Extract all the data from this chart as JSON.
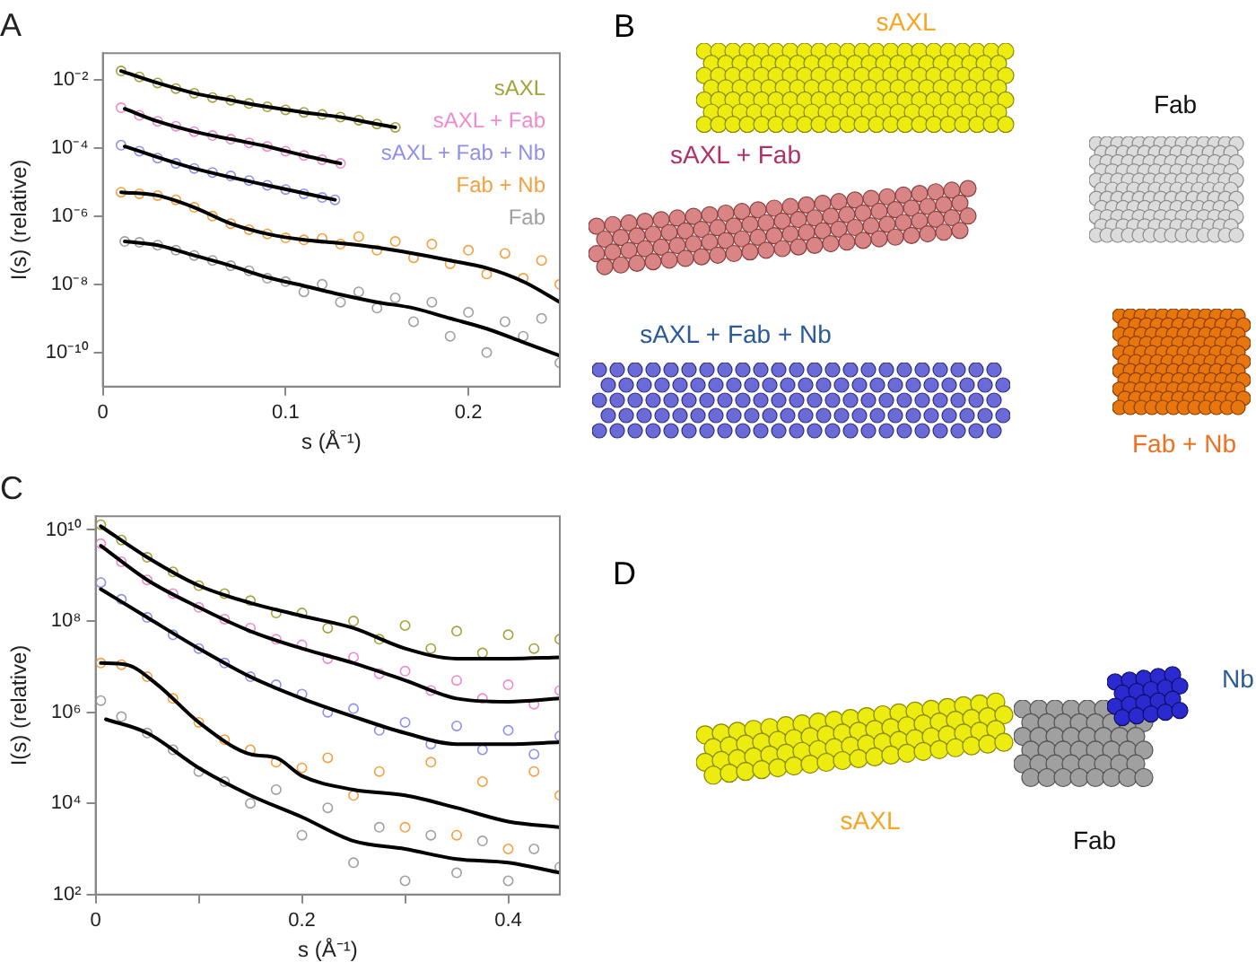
{
  "chart_data": [
    {
      "type": "scatter",
      "title": "A",
      "xlabel": "s (Å⁻¹)",
      "ylabel": "I(s) (relative)",
      "log": "y",
      "grid": false,
      "legend": "top right",
      "xlim": [
        0,
        0.25
      ],
      "ylim": [
        1e-11,
        0.06
      ],
      "xticks": [
        0,
        0.1,
        0.2
      ],
      "yticks": [
        {
          "value": 0.01,
          "label": "10⁻²"
        },
        {
          "value": 0.0001,
          "label": "10⁻⁴"
        },
        {
          "value": 1e-06,
          "label": "10⁻⁶"
        },
        {
          "value": 1e-08,
          "label": "10⁻⁸"
        },
        {
          "value": 1e-10,
          "label": "10⁻¹⁰"
        }
      ],
      "series": [
        {
          "name": "sAXL",
          "type": "scatter",
          "marker": "circle",
          "color": "#a3a33b",
          "x": [
            0.01,
            0.02,
            0.03,
            0.04,
            0.05,
            0.06,
            0.07,
            0.08,
            0.09,
            0.1,
            0.11,
            0.12,
            0.13,
            0.14,
            0.15,
            0.16
          ],
          "values": [
            0.018,
            0.012,
            0.008,
            0.0055,
            0.004,
            0.003,
            0.0025,
            0.002,
            0.0016,
            0.0013,
            0.0011,
            0.00095,
            0.0008,
            0.00065,
            0.0005,
            0.0004
          ]
        },
        {
          "name": "sAXL + Fab",
          "type": "scatter",
          "marker": "circle",
          "color": "#f08ad0",
          "x": [
            0.01,
            0.02,
            0.03,
            0.04,
            0.05,
            0.06,
            0.07,
            0.08,
            0.09,
            0.1,
            0.11,
            0.12,
            0.13
          ],
          "values": [
            0.0015,
            0.0009,
            0.0006,
            0.00043,
            0.0003,
            0.00023,
            0.00018,
            0.00014,
            0.00011,
            8e-05,
            6e-05,
            4.5e-05,
            3.5e-05
          ]
        },
        {
          "name": "sAXL + Fab + Nb",
          "type": "scatter",
          "marker": "circle",
          "color": "#8f8ff0",
          "x": [
            0.01,
            0.02,
            0.03,
            0.04,
            0.05,
            0.06,
            0.07,
            0.08,
            0.09,
            0.1,
            0.11,
            0.12,
            0.127
          ],
          "values": [
            0.00012,
            8e-05,
            5e-05,
            3.5e-05,
            2.5e-05,
            1.9e-05,
            1.5e-05,
            1.1e-05,
            8e-06,
            6e-06,
            4.5e-06,
            3.5e-06,
            3e-06
          ]
        },
        {
          "name": "Fab + Nb",
          "type": "scatter",
          "marker": "circle",
          "color": "#f5a040",
          "x": [
            0.01,
            0.02,
            0.03,
            0.04,
            0.05,
            0.06,
            0.07,
            0.08,
            0.09,
            0.1,
            0.11,
            0.12,
            0.13,
            0.14,
            0.15,
            0.16,
            0.17,
            0.18,
            0.19,
            0.2,
            0.21,
            0.22,
            0.23,
            0.24,
            0.25
          ],
          "values": [
            5e-06,
            4.5e-06,
            4e-06,
            3e-06,
            1.8e-06,
            1e-06,
            6e-07,
            4e-07,
            3e-07,
            2.3e-07,
            2e-07,
            2.2e-07,
            1.5e-07,
            2.5e-07,
            1e-07,
            1.8e-07,
            6e-08,
            1.5e-07,
            4e-08,
            1e-07,
            2e-08,
            8e-08,
            1.5e-08,
            5e-08,
            1e-08
          ]
        },
        {
          "name": "Fab",
          "type": "scatter",
          "marker": "circle",
          "color": "#a0a0a0",
          "x": [
            0.012,
            0.02,
            0.03,
            0.04,
            0.05,
            0.06,
            0.07,
            0.08,
            0.09,
            0.1,
            0.11,
            0.12,
            0.13,
            0.14,
            0.15,
            0.16,
            0.17,
            0.18,
            0.19,
            0.2,
            0.21,
            0.22,
            0.23,
            0.24,
            0.25
          ],
          "values": [
            1.8e-07,
            1.7e-07,
            1.4e-07,
            1e-07,
            7e-08,
            5e-08,
            3.5e-08,
            2.5e-08,
            1.5e-08,
            1.2e-08,
            6e-09,
            1e-08,
            3e-09,
            6e-09,
            2e-09,
            4e-09,
            8e-10,
            3e-09,
            3e-10,
            1.5e-09,
            1e-10,
            8e-10,
            3e-10,
            1e-09,
            5e-11
          ]
        },
        {
          "type": "line",
          "marker": "none",
          "color": "#000000",
          "x": [
            0.01,
            0.03,
            0.05,
            0.07,
            0.09,
            0.11,
            0.13,
            0.15,
            0.16
          ],
          "values": [
            0.018,
            0.008,
            0.004,
            0.0025,
            0.0016,
            0.0011,
            0.0008,
            0.0005,
            0.0004
          ]
        },
        {
          "type": "line",
          "marker": "none",
          "color": "#000000",
          "x": [
            0.012,
            0.03,
            0.05,
            0.07,
            0.09,
            0.11,
            0.13
          ],
          "values": [
            0.0014,
            0.0006,
            0.0003,
            0.00018,
            0.00011,
            6e-05,
            3.5e-05
          ]
        },
        {
          "type": "line",
          "marker": "none",
          "color": "#000000",
          "x": [
            0.012,
            0.05,
            0.09,
            0.127
          ],
          "values": [
            0.00011,
            2.5e-05,
            8e-06,
            3e-06
          ]
        },
        {
          "type": "line",
          "marker": "none",
          "color": "#000000",
          "x": [
            0.01,
            0.03,
            0.05,
            0.07,
            0.09,
            0.11,
            0.13,
            0.15,
            0.17,
            0.19,
            0.21,
            0.23,
            0.25
          ],
          "values": [
            5e-06,
            4e-06,
            1.8e-06,
            6e-07,
            3e-07,
            2e-07,
            1.6e-07,
            1.2e-07,
            8e-08,
            5e-08,
            3e-08,
            1.2e-08,
            3e-09
          ]
        },
        {
          "type": "line",
          "marker": "none",
          "color": "#000000",
          "x": [
            0.012,
            0.03,
            0.05,
            0.07,
            0.09,
            0.11,
            0.13,
            0.15,
            0.17,
            0.19,
            0.21,
            0.23,
            0.25
          ],
          "values": [
            1.8e-07,
            1.4e-07,
            7e-08,
            3.5e-08,
            1.6e-08,
            9e-09,
            5e-09,
            3e-09,
            2e-09,
            1e-09,
            5e-10,
            2e-10,
            8e-11
          ]
        }
      ]
    },
    {
      "type": "other",
      "title": "B",
      "annotations": [
        "sAXL",
        "sAXL + Fab",
        "sAXL + Fab + Nb",
        "Fab",
        "Fab + Nb"
      ]
    },
    {
      "type": "scatter",
      "title": "C",
      "xlabel": "s (Å⁻¹)",
      "ylabel": "I(s) (relative)",
      "log": "y",
      "grid": false,
      "xlim": [
        0,
        0.45
      ],
      "ylim": [
        100,
        20000000000.0
      ],
      "xticks": [
        0,
        {
          "value": 0.1,
          "label": null
        },
        0.2,
        {
          "value": 0.3,
          "label": null
        },
        0.4
      ],
      "yticks": [
        {
          "value": 10000000000.0,
          "label": "10¹⁰"
        },
        {
          "value": 100000000.0,
          "label": "10⁸"
        },
        {
          "value": 1000000.0,
          "label": "10⁶"
        },
        {
          "value": 10000.0,
          "label": "10⁴"
        },
        {
          "value": 100,
          "label": "10²"
        }
      ],
      "series": [
        {
          "type": "scatter",
          "marker": "circle",
          "color": "#a3a33b",
          "x": [
            0.005,
            0.025,
            0.05,
            0.075,
            0.1,
            0.125,
            0.15,
            0.175,
            0.2,
            0.225,
            0.25,
            0.275,
            0.3,
            0.325,
            0.35,
            0.375,
            0.4,
            0.425,
            0.45
          ],
          "values": [
            13000000000.0,
            6000000000.0,
            2500000000.0,
            1200000000.0,
            600000000.0,
            400000000.0,
            280000000.0,
            150000000.0,
            150000000.0,
            70000000.0,
            100000000.0,
            40000000.0,
            80000000.0,
            25000000.0,
            60000000.0,
            20000000.0,
            50000000.0,
            25000000.0,
            40000000.0
          ]
        },
        {
          "type": "scatter",
          "marker": "circle",
          "color": "#f08ad0",
          "x": [
            0.005,
            0.025,
            0.05,
            0.075,
            0.1,
            0.125,
            0.15,
            0.175,
            0.2,
            0.225,
            0.25,
            0.275,
            0.3,
            0.325,
            0.35,
            0.375,
            0.4,
            0.425,
            0.45
          ],
          "values": [
            5000000000.0,
            2000000000.0,
            800000000.0,
            400000000.0,
            200000000.0,
            110000000.0,
            70000000.0,
            40000000.0,
            30000000.0,
            15000000.0,
            16000000.0,
            7000000.0,
            8000000.0,
            3000000.0,
            5000000.0,
            2000000.0,
            4000000.0,
            1500000.0,
            3000000.0
          ]
        },
        {
          "type": "scatter",
          "marker": "circle",
          "color": "#8f8ff0",
          "x": [
            0.005,
            0.025,
            0.05,
            0.075,
            0.1,
            0.125,
            0.15,
            0.175,
            0.2,
            0.225,
            0.25,
            0.275,
            0.3,
            0.325,
            0.35,
            0.375,
            0.4,
            0.425,
            0.45
          ],
          "values": [
            700000000.0,
            300000000.0,
            120000000.0,
            50000000.0,
            25000000.0,
            12000000.0,
            6000000.0,
            4000000.0,
            2500000.0,
            1000000.0,
            1200000.0,
            400000.0,
            600000.0,
            200000.0,
            500000.0,
            150000.0,
            400000.0,
            120000.0,
            300000.0
          ]
        },
        {
          "type": "scatter",
          "marker": "circle",
          "color": "#f5a040",
          "x": [
            0.005,
            0.025,
            0.05,
            0.075,
            0.1,
            0.125,
            0.15,
            0.175,
            0.2,
            0.225,
            0.25,
            0.275,
            0.3,
            0.325,
            0.35,
            0.375,
            0.4,
            0.425,
            0.45
          ],
          "values": [
            12000000.0,
            11000000.0,
            6000000.0,
            2000000.0,
            600000.0,
            250000.0,
            150000.0,
            80000.0,
            60000.0,
            100000.0,
            15000.0,
            50000.0,
            3000.0,
            80000.0,
            2000.0,
            30000.0,
            1000.0,
            50000.0,
            15000.0
          ]
        },
        {
          "type": "scatter",
          "marker": "circle",
          "color": "#a0a0a0",
          "x": [
            0.005,
            0.025,
            0.05,
            0.075,
            0.1,
            0.125,
            0.15,
            0.175,
            0.2,
            0.225,
            0.25,
            0.275,
            0.3,
            0.325,
            0.35,
            0.375,
            0.4,
            0.425,
            0.45
          ],
          "values": [
            1800000.0,
            800000.0,
            350000.0,
            150000.0,
            50000.0,
            30000.0,
            10000.0,
            20000.0,
            2000.0,
            8000.0,
            500.0,
            3000.0,
            200.0,
            2000.0,
            300.0,
            1500.0,
            200.0,
            1000.0,
            400.0
          ]
        },
        {
          "type": "line",
          "marker": "none",
          "color": "#000000",
          "x": [
            0.005,
            0.05,
            0.1,
            0.15,
            0.2,
            0.25,
            0.3,
            0.35,
            0.4,
            0.45
          ],
          "values": [
            12000000000.0,
            2500000000.0,
            600000000.0,
            250000000.0,
            130000000.0,
            70000000.0,
            25000000.0,
            15000000.0,
            15000000.0,
            16000000.0
          ]
        },
        {
          "type": "line",
          "marker": "none",
          "color": "#000000",
          "x": [
            0.005,
            0.05,
            0.1,
            0.15,
            0.2,
            0.25,
            0.3,
            0.35,
            0.4,
            0.45
          ],
          "values": [
            4500000000.0,
            800000000.0,
            200000000.0,
            60000000.0,
            25000000.0,
            12000000.0,
            5000000.0,
            2000000.0,
            1700000.0,
            2000000.0
          ]
        },
        {
          "type": "line",
          "marker": "none",
          "color": "#000000",
          "x": [
            0.005,
            0.05,
            0.1,
            0.15,
            0.2,
            0.25,
            0.3,
            0.35,
            0.4,
            0.45
          ],
          "values": [
            500000000.0,
            120000000.0,
            25000000.0,
            6000000.0,
            2000000.0,
            800000.0,
            350000.0,
            200000.0,
            200000.0,
            220000.0
          ]
        },
        {
          "type": "line",
          "marker": "none",
          "color": "#000000",
          "x": [
            0.005,
            0.03,
            0.06,
            0.1,
            0.15,
            0.175,
            0.2,
            0.25,
            0.3,
            0.35,
            0.4,
            0.45
          ],
          "values": [
            12000000.0,
            11000000.0,
            4000000.0,
            600000.0,
            120000.0,
            100000.0,
            40000.0,
            20000.0,
            15000.0,
            8000.0,
            4000.0,
            3000.0
          ]
        },
        {
          "type": "line",
          "marker": "none",
          "color": "#000000",
          "x": [
            0.01,
            0.05,
            0.1,
            0.15,
            0.2,
            0.25,
            0.3,
            0.35,
            0.4,
            0.45
          ],
          "values": [
            700000.0,
            350000.0,
            60000.0,
            15000.0,
            5000.0,
            1500.0,
            1000.0,
            600.0,
            500.0,
            300.0
          ]
        }
      ]
    },
    {
      "type": "other",
      "title": "D",
      "annotations": [
        "Nb",
        "sAXL",
        "Fab"
      ]
    }
  ]
}
